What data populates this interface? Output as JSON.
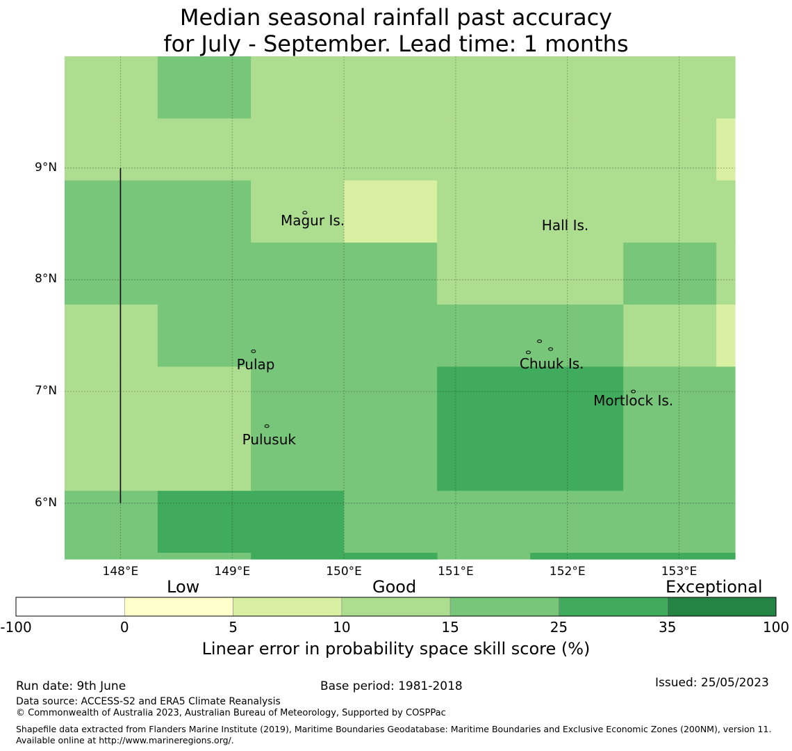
{
  "title_line1": "Median seasonal rainfall past accuracy",
  "title_line2": "for July - September. Lead time: 1 months",
  "map": {
    "lon_range": [
      147.5,
      153.5
    ],
    "lat_range": [
      5.5,
      10.0
    ],
    "grid": true,
    "cells": [
      {
        "lon": [
          147.5,
          148.333
        ],
        "lat": [
          9.444,
          10.0
        ],
        "cat": 3
      },
      {
        "lon": [
          148.333,
          149.167
        ],
        "lat": [
          9.444,
          10.0
        ],
        "cat": 4
      },
      {
        "lon": [
          149.167,
          153.333
        ],
        "lat": [
          9.444,
          10.0
        ],
        "cat": 3
      },
      {
        "lon": [
          153.333,
          153.5
        ],
        "lat": [
          9.444,
          10.0
        ],
        "cat": 3
      },
      {
        "lon": [
          147.5,
          153.333
        ],
        "lat": [
          8.889,
          9.444
        ],
        "cat": 3
      },
      {
        "lon": [
          153.333,
          153.5
        ],
        "lat": [
          8.889,
          9.444
        ],
        "cat": 2
      },
      {
        "lon": [
          147.5,
          149.167
        ],
        "lat": [
          8.333,
          8.889
        ],
        "cat": 4
      },
      {
        "lon": [
          149.167,
          150.0
        ],
        "lat": [
          8.333,
          8.889
        ],
        "cat": 3
      },
      {
        "lon": [
          150.0,
          150.833
        ],
        "lat": [
          8.333,
          8.889
        ],
        "cat": 2
      },
      {
        "lon": [
          150.833,
          153.5
        ],
        "lat": [
          8.333,
          8.889
        ],
        "cat": 3
      },
      {
        "lon": [
          147.5,
          150.833
        ],
        "lat": [
          7.778,
          8.333
        ],
        "cat": 4
      },
      {
        "lon": [
          150.833,
          152.5
        ],
        "lat": [
          7.778,
          8.333
        ],
        "cat": 3
      },
      {
        "lon": [
          152.5,
          153.333
        ],
        "lat": [
          7.778,
          8.333
        ],
        "cat": 4
      },
      {
        "lon": [
          153.333,
          153.5
        ],
        "lat": [
          7.778,
          8.333
        ],
        "cat": 3
      },
      {
        "lon": [
          147.5,
          148.333
        ],
        "lat": [
          7.222,
          7.778
        ],
        "cat": 3
      },
      {
        "lon": [
          148.333,
          152.5
        ],
        "lat": [
          7.222,
          7.778
        ],
        "cat": 4
      },
      {
        "lon": [
          152.5,
          153.333
        ],
        "lat": [
          7.222,
          7.778
        ],
        "cat": 3
      },
      {
        "lon": [
          153.333,
          153.5
        ],
        "lat": [
          7.222,
          7.778
        ],
        "cat": 2
      },
      {
        "lon": [
          147.5,
          149.167
        ],
        "lat": [
          6.111,
          7.222
        ],
        "cat": 3
      },
      {
        "lon": [
          149.167,
          150.833
        ],
        "lat": [
          6.111,
          7.222
        ],
        "cat": 4
      },
      {
        "lon": [
          150.833,
          152.5
        ],
        "lat": [
          6.111,
          7.222
        ],
        "cat": 5
      },
      {
        "lon": [
          152.5,
          153.5
        ],
        "lat": [
          6.111,
          7.222
        ],
        "cat": 4
      },
      {
        "lon": [
          147.5,
          148.333
        ],
        "lat": [
          5.5,
          6.111
        ],
        "cat": 4
      },
      {
        "lon": [
          148.333,
          150.0
        ],
        "lat": [
          5.556,
          6.111
        ],
        "cat": 5
      },
      {
        "lon": [
          148.333,
          149.167
        ],
        "lat": [
          5.5,
          5.556
        ],
        "cat": 4
      },
      {
        "lon": [
          149.167,
          150.0
        ],
        "lat": [
          5.5,
          5.556
        ],
        "cat": 5
      },
      {
        "lon": [
          150.0,
          153.5
        ],
        "lat": [
          5.5,
          6.111
        ],
        "cat": 4
      },
      {
        "lon": [
          150.0,
          150.833
        ],
        "lat": [
          5.5,
          5.556
        ],
        "cat": 5
      },
      {
        "lon": [
          151.667,
          153.5
        ],
        "lat": [
          5.5,
          5.556
        ],
        "cat": 5
      }
    ],
    "eez_line": {
      "lon": 148.0,
      "lat": [
        6.0,
        9.0
      ]
    },
    "lat_ticks": [
      {
        "value": 9,
        "label": "9°N"
      },
      {
        "value": 8,
        "label": "8°N"
      },
      {
        "value": 7,
        "label": "7°N"
      },
      {
        "value": 6,
        "label": "6°N"
      }
    ],
    "lon_ticks": [
      {
        "value": 148,
        "label": "148°E"
      },
      {
        "value": 149,
        "label": "149°E"
      },
      {
        "value": 150,
        "label": "150°E"
      },
      {
        "value": 151,
        "label": "151°E"
      },
      {
        "value": 152,
        "label": "152°E"
      },
      {
        "value": 153,
        "label": "153°E"
      }
    ],
    "places": [
      {
        "name": "Magur Is.",
        "lon": 149.72,
        "lat": 8.53
      },
      {
        "name": "Hall Is.",
        "lon": 151.98,
        "lat": 8.49
      },
      {
        "name": "Pulap",
        "lon": 149.21,
        "lat": 7.24
      },
      {
        "name": "Chuuk Is.",
        "lon": 151.86,
        "lat": 7.25
      },
      {
        "name": "Mortlock Is.",
        "lon": 152.59,
        "lat": 6.92
      },
      {
        "name": "Pulusuk",
        "lon": 149.33,
        "lat": 6.57
      }
    ],
    "islands": [
      {
        "lon": 149.19,
        "lat": 7.36
      },
      {
        "lon": 149.31,
        "lat": 6.69
      },
      {
        "lon": 149.65,
        "lat": 8.6
      },
      {
        "lon": 151.65,
        "lat": 7.35
      },
      {
        "lon": 151.85,
        "lat": 7.38
      },
      {
        "lon": 151.75,
        "lat": 7.45
      },
      {
        "lon": 152.59,
        "lat": 7.0
      }
    ]
  },
  "colorbar": {
    "colors": [
      "#ffffff",
      "#ffffcc",
      "#d9f0a3",
      "#addd8e",
      "#78c679",
      "#41ab5d",
      "#238443"
    ],
    "ticks": [
      "-100",
      "0",
      "5",
      "10",
      "15",
      "25",
      "35",
      "100"
    ],
    "categories": [
      "Low",
      "Good",
      "Exceptional"
    ],
    "title": "Linear error in probability space skill score (%)"
  },
  "footer": {
    "run_date": "Run date: 9th June",
    "base_period": "Base period: 1981-2018",
    "issued": "Issued: 25/05/2023",
    "data_source": "Data source: ACCESS-S2 and ERA5 Climate Reanalysis",
    "copyright": "© Commonwealth of Australia 2023, Australian Bureau of Meteorology, Supported by COSPPac",
    "shapefile": "Shapefile data extracted from Flanders Marine Institute (2019), Maritime Boundaries Geodatabase: Maritime Boundaries and Exclusive Economic Zones (200NM), version 11. Available online at http://www.marineregions.org/."
  }
}
